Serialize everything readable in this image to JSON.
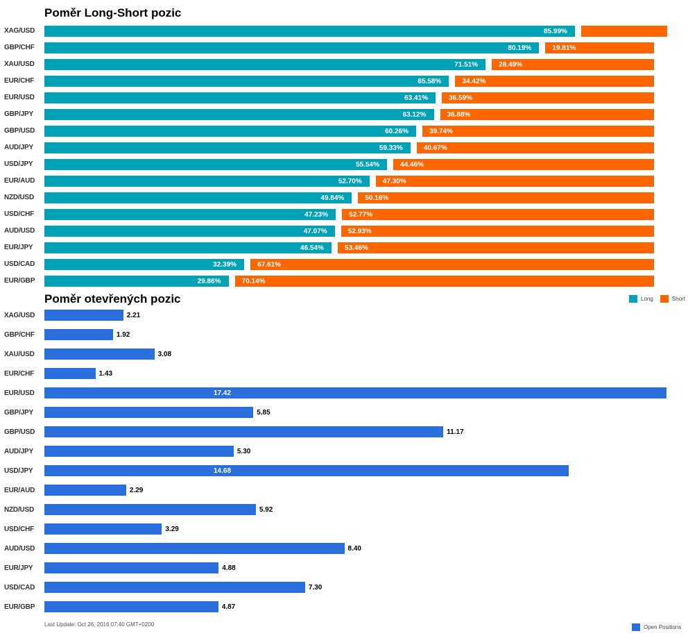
{
  "chart_data": [
    {
      "type": "bar",
      "orientation": "horizontal",
      "stacked": true,
      "title": "Poměr Long-Short pozic",
      "categories": [
        "XAG/USD",
        "GBP/CHF",
        "XAU/USD",
        "EUR/CHF",
        "EUR/USD",
        "GBP/JPY",
        "GBP/USD",
        "AUD/JPY",
        "USD/JPY",
        "EUR/AUD",
        "NZD/USD",
        "USD/CHF",
        "AUD/USD",
        "EUR/JPY",
        "USD/CAD",
        "EUR/GBP"
      ],
      "series": [
        {
          "name": "Long",
          "color": "#00a2b8",
          "values": [
            85.99,
            80.19,
            71.51,
            65.58,
            63.41,
            63.12,
            60.26,
            59.33,
            55.54,
            52.7,
            49.84,
            47.23,
            47.07,
            46.54,
            32.39,
            29.86
          ],
          "labels": [
            "85.99%",
            "80.19%",
            "71.51%",
            "65.58%",
            "63.41%",
            "63.12%",
            "60.26%",
            "59.33%",
            "55.54%",
            "52.70%",
            "49.84%",
            "47.23%",
            "47.07%",
            "46.54%",
            "32.39%",
            "29.86%"
          ]
        },
        {
          "name": "Short",
          "color": "#ff6600",
          "values": [
            14.01,
            19.81,
            28.49,
            34.42,
            36.59,
            36.88,
            39.74,
            40.67,
            44.46,
            47.3,
            50.16,
            52.77,
            52.93,
            53.46,
            67.61,
            70.14
          ],
          "labels": [
            "",
            "19.81%",
            "28.49%",
            "34.42%",
            "36.59%",
            "36.88%",
            "39.74%",
            "40.67%",
            "44.46%",
            "47.30%",
            "50.16%",
            "52.77%",
            "52.93%",
            "53.46%",
            "67.61%",
            "70.14%"
          ]
        }
      ],
      "xlim": [
        0,
        100
      ],
      "legend": "bottom-right"
    },
    {
      "type": "bar",
      "orientation": "horizontal",
      "title": "Poměr otevřených pozic",
      "categories": [
        "XAG/USD",
        "GBP/CHF",
        "XAU/USD",
        "EUR/CHF",
        "EUR/USD",
        "GBP/JPY",
        "GBP/USD",
        "AUD/JPY",
        "USD/JPY",
        "EUR/AUD",
        "NZD/USD",
        "USD/CHF",
        "AUD/USD",
        "EUR/JPY",
        "USD/CAD",
        "EUR/GBP"
      ],
      "series": [
        {
          "name": "Open Positions",
          "color": "#2a6fdb",
          "values": [
            2.21,
            1.92,
            3.08,
            1.43,
            17.42,
            5.85,
            11.17,
            5.3,
            14.68,
            2.29,
            5.92,
            3.29,
            8.4,
            4.88,
            7.3,
            4.87
          ],
          "labels": [
            "2.21",
            "1.92",
            "3.08",
            "1.43",
            "17.42",
            "5.85",
            "11.17",
            "5.30",
            "14.68",
            "2.29",
            "5.92",
            "3.29",
            "8.40",
            "4.88",
            "7.30",
            "4.87"
          ]
        }
      ],
      "xlim": [
        0,
        17.42
      ],
      "legend": "bottom-right"
    }
  ],
  "legend1": {
    "long": "Long",
    "short": "Short"
  },
  "legend2": {
    "open": "Open Positions"
  },
  "footer": "Last Update: Oct 26, 2016 07:40 GMT+0200"
}
